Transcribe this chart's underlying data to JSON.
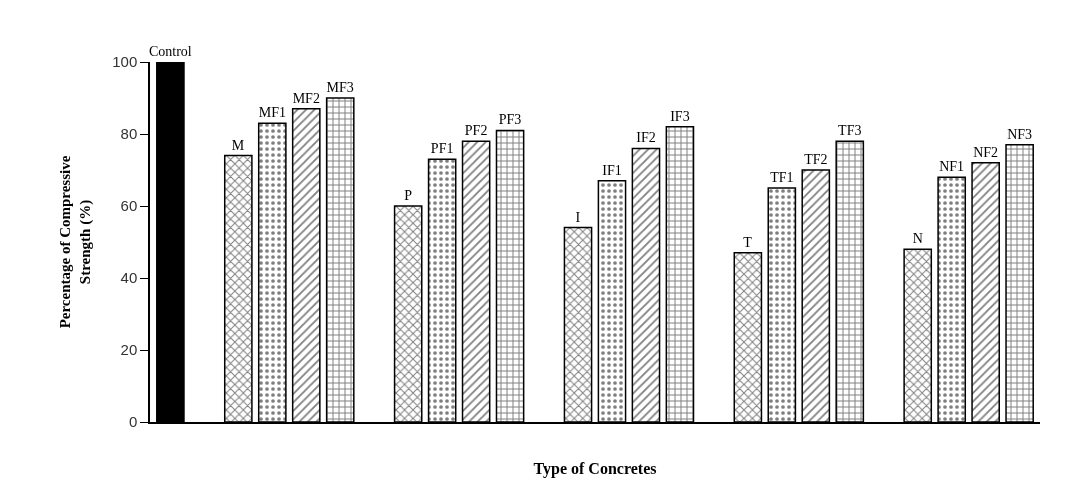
{
  "chart_data": {
    "type": "bar",
    "xlabel": "Type of Concretes",
    "ylabel": "Percentage of Compressive\nStrength (%)",
    "categories": [
      null,
      null,
      null,
      null,
      null,
      null,
      null,
      null,
      null,
      null,
      null,
      null,
      null,
      null,
      null,
      null,
      null,
      null,
      null,
      null,
      null,
      null,
      null,
      null,
      null,
      null
    ],
    "series": [
      {
        "color": "#000000",
        "values": [
          100,
          null,
          null,
          null,
          null,
          null,
          null,
          null,
          null,
          null,
          null,
          null,
          null,
          null,
          null,
          null,
          null,
          null,
          null,
          null,
          null,
          null,
          null,
          null,
          null,
          null
        ],
        "value_labels": [
          "Control",
          null,
          null,
          null,
          null,
          null,
          null,
          null,
          null,
          null,
          null,
          null,
          null,
          null,
          null,
          null,
          null,
          null,
          null,
          null,
          null,
          null,
          null,
          null,
          null,
          null
        ]
      },
      {
        "color": "#000000",
        "values": [
          null,
          null,
          74,
          null,
          null,
          null,
          null,
          60,
          null,
          null,
          null,
          null,
          54,
          null,
          null,
          null,
          null,
          47,
          null,
          null,
          null,
          null,
          48,
          null,
          null,
          null
        ],
        "value_labels": [
          null,
          null,
          "M",
          null,
          null,
          null,
          null,
          "P",
          null,
          null,
          null,
          null,
          "I",
          null,
          null,
          null,
          null,
          "T",
          null,
          null,
          null,
          null,
          "N",
          null,
          null,
          null
        ]
      },
      {
        "color": "#000000",
        "values": [
          null,
          null,
          null,
          83,
          null,
          null,
          null,
          null,
          73,
          null,
          null,
          null,
          null,
          67,
          null,
          null,
          null,
          null,
          65,
          null,
          null,
          null,
          null,
          68,
          null,
          null
        ],
        "value_labels": [
          null,
          null,
          null,
          "MF1",
          null,
          null,
          null,
          null,
          "PF1",
          null,
          null,
          null,
          null,
          "IF1",
          null,
          null,
          null,
          null,
          "TF1",
          null,
          null,
          null,
          null,
          "NF1",
          null,
          null
        ]
      },
      {
        "color": "#000000",
        "values": [
          null,
          null,
          null,
          null,
          87,
          null,
          null,
          null,
          null,
          78,
          null,
          null,
          null,
          null,
          76,
          null,
          null,
          null,
          null,
          70,
          null,
          null,
          null,
          null,
          72,
          null
        ],
        "value_labels": [
          null,
          null,
          null,
          null,
          "MF2",
          null,
          null,
          null,
          null,
          "PF2",
          null,
          null,
          null,
          null,
          "IF2",
          null,
          null,
          null,
          null,
          "TF2",
          null,
          null,
          null,
          null,
          "NF2",
          null
        ]
      },
      {
        "color": "#000000",
        "values": [
          null,
          null,
          null,
          null,
          null,
          90,
          null,
          null,
          null,
          null,
          81,
          null,
          null,
          null,
          null,
          82,
          null,
          null,
          null,
          null,
          78,
          null,
          null,
          null,
          null,
          77
        ],
        "value_labels": [
          null,
          null,
          null,
          null,
          null,
          "MF3",
          null,
          null,
          null,
          null,
          "PF3",
          null,
          null,
          null,
          null,
          "IF3",
          null,
          null,
          null,
          null,
          "TF3",
          null,
          null,
          null,
          null,
          "NF3"
        ]
      }
    ],
    "ylim": [
      0,
      100
    ],
    "yticks": [
      0,
      20,
      40,
      60,
      80,
      100
    ],
    "grid": false,
    "tick_labels": "y"
  }
}
